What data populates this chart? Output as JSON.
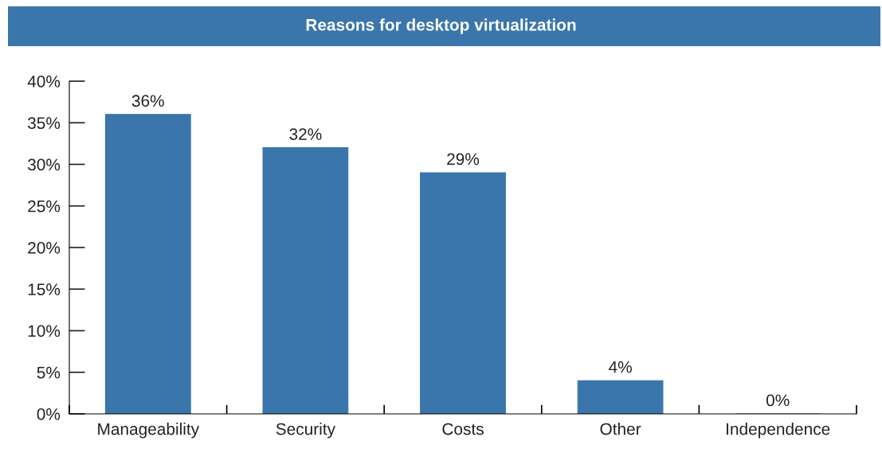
{
  "chart_data": {
    "type": "bar",
    "title": "Reasons for desktop virtualization",
    "categories": [
      "Manageability",
      "Security",
      "Costs",
      "Other",
      "Independence"
    ],
    "values": [
      36,
      32,
      29,
      4,
      0
    ],
    "value_labels": [
      "36%",
      "32%",
      "29%",
      "4%",
      "0%"
    ],
    "color": "#3a76ab",
    "ylim": [
      0,
      40
    ],
    "yticks": [
      {
        "value": 0,
        "label": "0%"
      },
      {
        "value": 5,
        "label": "5%"
      },
      {
        "value": 10,
        "label": "10%"
      },
      {
        "value": 15,
        "label": "15%"
      },
      {
        "value": 20,
        "label": "20%"
      },
      {
        "value": 25,
        "label": "25%"
      },
      {
        "value": 30,
        "label": "30%"
      },
      {
        "value": 35,
        "label": "35%"
      },
      {
        "value": 40,
        "label": "40%"
      }
    ],
    "grid": false,
    "legend": false
  }
}
